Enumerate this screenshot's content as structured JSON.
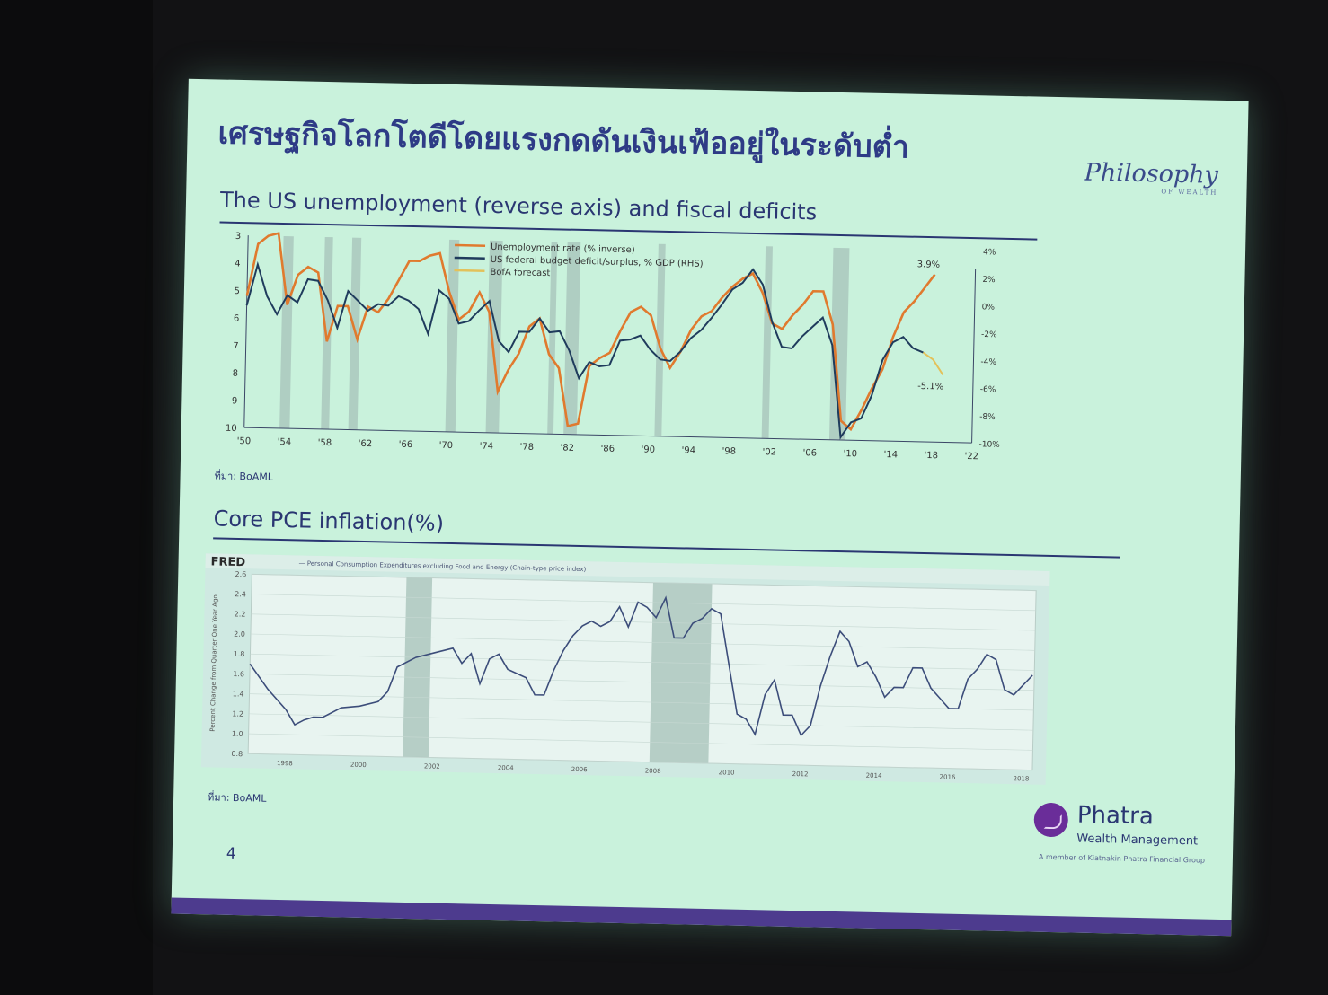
{
  "slide": {
    "title": "เศรษฐกิจโลกโตดีโดยแรงกดดันเงินเฟ้ออยู่ในระดับต่ำ",
    "brand_logo": "Philosophy",
    "brand_logo_sub": "OF WEALTH",
    "page_number": "4",
    "phatra": {
      "name": "Phatra",
      "sub": "Wealth Management",
      "member": "A member of Kiatnakin Phatra Financial Group"
    }
  },
  "section1": {
    "title": "The US unemployment (reverse axis) and fiscal deficits",
    "source": "ที่มา: BoAML"
  },
  "section2": {
    "title": "Core PCE inflation(%)",
    "source": "ที่มา: BoAML"
  },
  "colors": {
    "unemployment": "#e07a2e",
    "deficit": "#1f3b5c",
    "forecast": "#e3c15a",
    "recession": "#a9c4bb",
    "pce": "#3c4d7a"
  },
  "chart_data": [
    {
      "type": "line",
      "title": "The US unemployment (reverse axis) and fiscal deficits",
      "x_ticks": [
        "'50",
        "'54",
        "'58",
        "'62",
        "'66",
        "'70",
        "'74",
        "'78",
        "'82",
        "'86",
        "'90",
        "'94",
        "'98",
        "'02",
        "'06",
        "'10",
        "'14",
        "'18",
        "'22"
      ],
      "y_left": {
        "ticks": [
          "3",
          "4",
          "5",
          "6",
          "7",
          "8",
          "9",
          "10"
        ],
        "range": [
          3,
          10
        ],
        "reversed": true
      },
      "y_right": {
        "ticks": [
          "4%",
          "2%",
          "0%",
          "-2%",
          "-4%",
          "-6%",
          "-8%",
          "-10%"
        ],
        "range": [
          -10,
          4
        ]
      },
      "annotations": [
        "3.9%",
        "-5.1%"
      ],
      "recessions": [
        [
          1953.5,
          1954.5
        ],
        [
          1957.6,
          1958.4
        ],
        [
          1960.3,
          1961.2
        ],
        [
          1969.9,
          1970.9
        ],
        [
          1973.9,
          1975.2
        ],
        [
          1980.0,
          1980.6
        ],
        [
          1981.6,
          1982.9
        ],
        [
          1990.6,
          1991.3
        ],
        [
          2001.2,
          2001.9
        ],
        [
          2007.9,
          2009.5
        ]
      ],
      "series": [
        {
          "name": "Unemployment rate (% inverse)",
          "axis": "left",
          "points": [
            [
              1950,
              5.2
            ],
            [
              1951,
              3.3
            ],
            [
              1952,
              3.0
            ],
            [
              1953,
              2.9
            ],
            [
              1954,
              5.5
            ],
            [
              1955,
              4.4
            ],
            [
              1956,
              4.1
            ],
            [
              1957,
              4.3
            ],
            [
              1958,
              6.8
            ],
            [
              1959,
              5.5
            ],
            [
              1960,
              5.5
            ],
            [
              1961,
              6.7
            ],
            [
              1962,
              5.5
            ],
            [
              1963,
              5.7
            ],
            [
              1964,
              5.2
            ],
            [
              1965,
              4.5
            ],
            [
              1966,
              3.8
            ],
            [
              1967,
              3.8
            ],
            [
              1968,
              3.6
            ],
            [
              1969,
              3.5
            ],
            [
              1970,
              4.9
            ],
            [
              1971,
              5.9
            ],
            [
              1972,
              5.6
            ],
            [
              1973,
              4.9
            ],
            [
              1974,
              5.6
            ],
            [
              1975,
              8.5
            ],
            [
              1976,
              7.7
            ],
            [
              1977,
              7.1
            ],
            [
              1978,
              6.1
            ],
            [
              1979,
              5.8
            ],
            [
              1980,
              7.1
            ],
            [
              1981,
              7.6
            ],
            [
              1982,
              9.7
            ],
            [
              1983,
              9.6
            ],
            [
              1984,
              7.5
            ],
            [
              1985,
              7.2
            ],
            [
              1986,
              7.0
            ],
            [
              1987,
              6.2
            ],
            [
              1988,
              5.5
            ],
            [
              1989,
              5.3
            ],
            [
              1990,
              5.6
            ],
            [
              1991,
              6.8
            ],
            [
              1992,
              7.5
            ],
            [
              1993,
              6.9
            ],
            [
              1994,
              6.1
            ],
            [
              1995,
              5.6
            ],
            [
              1996,
              5.4
            ],
            [
              1997,
              4.9
            ],
            [
              1998,
              4.5
            ],
            [
              1999,
              4.2
            ],
            [
              2000,
              4.0
            ],
            [
              2001,
              4.7
            ],
            [
              2002,
              5.8
            ],
            [
              2003,
              6.0
            ],
            [
              2004,
              5.5
            ],
            [
              2005,
              5.1
            ],
            [
              2006,
              4.6
            ],
            [
              2007,
              4.6
            ],
            [
              2008,
              5.8
            ],
            [
              2009,
              9.3
            ],
            [
              2010,
              9.6
            ],
            [
              2011,
              8.9
            ],
            [
              2012,
              8.1
            ],
            [
              2013,
              7.4
            ],
            [
              2014,
              6.2
            ],
            [
              2015,
              5.3
            ],
            [
              2016,
              4.9
            ],
            [
              2017,
              4.4
            ],
            [
              2018,
              3.9
            ]
          ]
        },
        {
          "name": "US federal budget deficit/surplus, % GDP (RHS)",
          "axis": "right",
          "points": [
            [
              1950,
              -1.1
            ],
            [
              1951,
              1.9
            ],
            [
              1952,
              -0.4
            ],
            [
              1953,
              -1.7
            ],
            [
              1954,
              -0.3
            ],
            [
              1955,
              -0.8
            ],
            [
              1956,
              0.9
            ],
            [
              1957,
              0.8
            ],
            [
              1958,
              -0.6
            ],
            [
              1959,
              -2.6
            ],
            [
              1960,
              0.1
            ],
            [
              1961,
              -0.6
            ],
            [
              1962,
              -1.3
            ],
            [
              1963,
              -0.8
            ],
            [
              1964,
              -0.9
            ],
            [
              1965,
              -0.2
            ],
            [
              1966,
              -0.5
            ],
            [
              1967,
              -1.1
            ],
            [
              1968,
              -2.9
            ],
            [
              1969,
              0.3
            ],
            [
              1970,
              -0.3
            ],
            [
              1971,
              -2.1
            ],
            [
              1972,
              -1.9
            ],
            [
              1973,
              -1.1
            ],
            [
              1974,
              -0.4
            ],
            [
              1975,
              -3.3
            ],
            [
              1976,
              -4.1
            ],
            [
              1977,
              -2.6
            ],
            [
              1978,
              -2.6
            ],
            [
              1979,
              -1.6
            ],
            [
              1980,
              -2.6
            ],
            [
              1981,
              -2.5
            ],
            [
              1982,
              -3.9
            ],
            [
              1983,
              -5.9
            ],
            [
              1984,
              -4.7
            ],
            [
              1985,
              -5.0
            ],
            [
              1986,
              -4.9
            ],
            [
              1987,
              -3.1
            ],
            [
              1988,
              -3.0
            ],
            [
              1989,
              -2.7
            ],
            [
              1990,
              -3.7
            ],
            [
              1991,
              -4.4
            ],
            [
              1992,
              -4.5
            ],
            [
              1993,
              -3.8
            ],
            [
              1994,
              -2.8
            ],
            [
              1995,
              -2.2
            ],
            [
              1996,
              -1.3
            ],
            [
              1997,
              -0.3
            ],
            [
              1998,
              0.8
            ],
            [
              1999,
              1.3
            ],
            [
              2000,
              2.3
            ],
            [
              2001,
              1.2
            ],
            [
              2002,
              -1.5
            ],
            [
              2003,
              -3.3
            ],
            [
              2004,
              -3.4
            ],
            [
              2005,
              -2.5
            ],
            [
              2006,
              -1.8
            ],
            [
              2007,
              -1.1
            ],
            [
              2008,
              -3.1
            ],
            [
              2009,
              -9.8
            ],
            [
              2010,
              -8.7
            ],
            [
              2011,
              -8.4
            ],
            [
              2012,
              -6.7
            ],
            [
              2013,
              -4.1
            ],
            [
              2014,
              -2.8
            ],
            [
              2015,
              -2.4
            ],
            [
              2016,
              -3.2
            ],
            [
              2017,
              -3.5
            ]
          ]
        },
        {
          "name": "BofA forecast",
          "axis": "right",
          "points": [
            [
              2017,
              -3.5
            ],
            [
              2018,
              -4.0
            ],
            [
              2019,
              -5.1
            ]
          ]
        }
      ],
      "legend_position": "top-center"
    },
    {
      "type": "line",
      "title": "Core PCE inflation(%)",
      "header_logo": "FRED",
      "series_label": "— Personal Consumption Expenditures excluding Food and Energy (Chain-type price index)",
      "y_label": "Percent Change from Quarter One Year Ago",
      "y_ticks": [
        "0.8",
        "1.0",
        "1.2",
        "1.4",
        "1.6",
        "1.8",
        "2.0",
        "2.2",
        "2.4",
        "2.6"
      ],
      "y_range": [
        0.8,
        2.6
      ],
      "x_ticks": [
        "1998",
        "2000",
        "2002",
        "2004",
        "2006",
        "2008",
        "2010",
        "2012",
        "2014",
        "2016",
        "2018"
      ],
      "x_range": [
        1997.0,
        2018.3
      ],
      "recessions": [
        [
          2001.2,
          2001.9
        ],
        [
          2007.9,
          2009.5
        ]
      ],
      "series": [
        {
          "name": "Personal Consumption Expenditures excluding Food and Energy (Chain-type price index)",
          "points": [
            [
              1997.0,
              1.7
            ],
            [
              1997.5,
              1.45
            ],
            [
              1998.0,
              1.25
            ],
            [
              1998.25,
              1.1
            ],
            [
              1998.5,
              1.15
            ],
            [
              1998.75,
              1.18
            ],
            [
              1999.0,
              1.18
            ],
            [
              1999.5,
              1.28
            ],
            [
              2000.0,
              1.3
            ],
            [
              2000.5,
              1.35
            ],
            [
              2000.75,
              1.45
            ],
            [
              2001.0,
              1.7
            ],
            [
              2001.5,
              1.8
            ],
            [
              2002.0,
              1.85
            ],
            [
              2002.5,
              1.9
            ],
            [
              2002.75,
              1.75
            ],
            [
              2003.0,
              1.85
            ],
            [
              2003.25,
              1.55
            ],
            [
              2003.5,
              1.8
            ],
            [
              2003.75,
              1.85
            ],
            [
              2004.0,
              1.7
            ],
            [
              2004.5,
              1.62
            ],
            [
              2004.75,
              1.45
            ],
            [
              2005.0,
              1.45
            ],
            [
              2005.25,
              1.7
            ],
            [
              2005.5,
              1.9
            ],
            [
              2005.75,
              2.05
            ],
            [
              2006.0,
              2.15
            ],
            [
              2006.25,
              2.2
            ],
            [
              2006.5,
              2.15
            ],
            [
              2006.75,
              2.2
            ],
            [
              2007.0,
              2.35
            ],
            [
              2007.25,
              2.15
            ],
            [
              2007.5,
              2.4
            ],
            [
              2007.75,
              2.35
            ],
            [
              2008.0,
              2.25
            ],
            [
              2008.25,
              2.45
            ],
            [
              2008.5,
              2.05
            ],
            [
              2008.75,
              2.05
            ],
            [
              2009.0,
              2.2
            ],
            [
              2009.25,
              2.25
            ],
            [
              2009.5,
              2.35
            ],
            [
              2009.75,
              2.3
            ],
            [
              2010.0,
              1.8
            ],
            [
              2010.25,
              1.3
            ],
            [
              2010.5,
              1.25
            ],
            [
              2010.75,
              1.1
            ],
            [
              2011.0,
              1.5
            ],
            [
              2011.25,
              1.65
            ],
            [
              2011.5,
              1.3
            ],
            [
              2011.75,
              1.3
            ],
            [
              2012.0,
              1.1
            ],
            [
              2012.25,
              1.2
            ],
            [
              2012.5,
              1.6
            ],
            [
              2012.75,
              1.9
            ],
            [
              2013.0,
              2.15
            ],
            [
              2013.25,
              2.05
            ],
            [
              2013.5,
              1.8
            ],
            [
              2013.75,
              1.85
            ],
            [
              2014.0,
              1.7
            ],
            [
              2014.25,
              1.5
            ],
            [
              2014.5,
              1.6
            ],
            [
              2014.75,
              1.6
            ],
            [
              2015.0,
              1.8
            ],
            [
              2015.25,
              1.8
            ],
            [
              2015.5,
              1.6
            ],
            [
              2015.75,
              1.5
            ],
            [
              2016.0,
              1.4
            ],
            [
              2016.25,
              1.4
            ],
            [
              2016.5,
              1.7
            ],
            [
              2016.75,
              1.8
            ],
            [
              2017.0,
              1.95
            ],
            [
              2017.25,
              1.9
            ],
            [
              2017.5,
              1.6
            ],
            [
              2017.75,
              1.55
            ],
            [
              2018.0,
              1.65
            ],
            [
              2018.25,
              1.75
            ]
          ]
        }
      ]
    }
  ]
}
